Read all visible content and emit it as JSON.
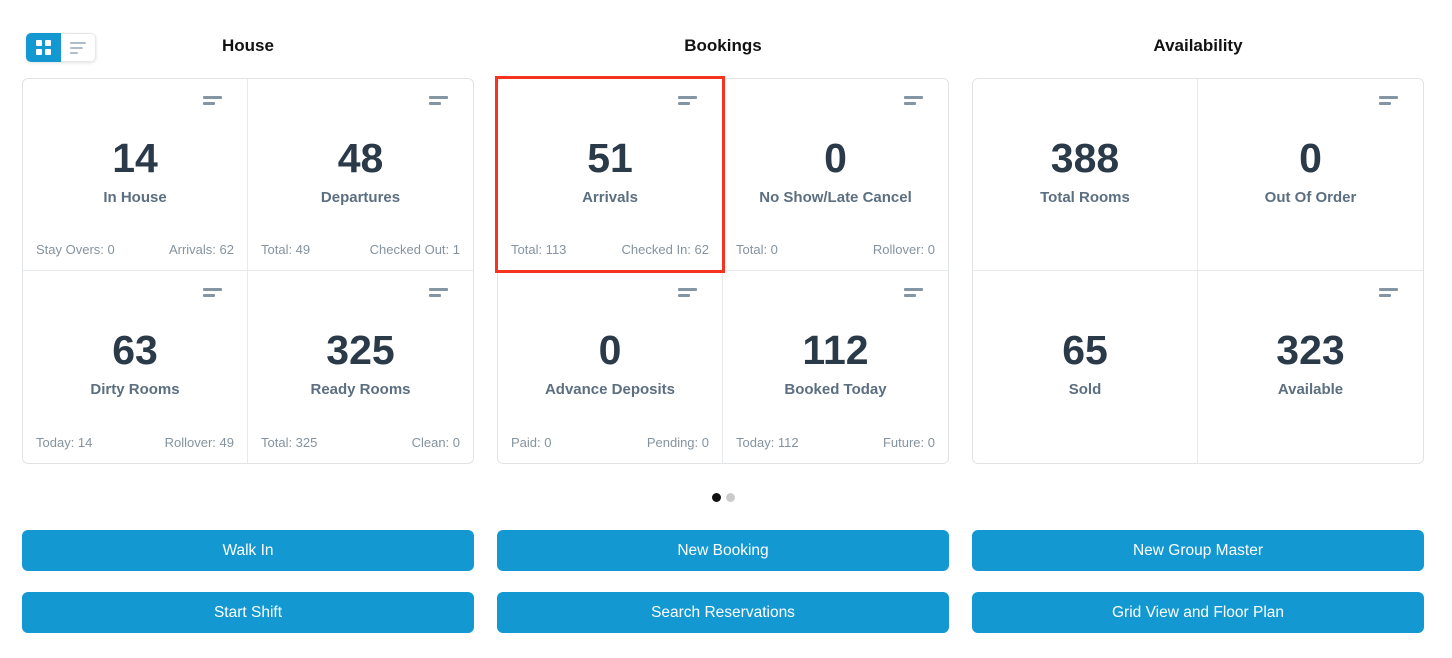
{
  "colors": {
    "accent": "#1398d2",
    "highlight_border": "#f5331f",
    "number_text": "#2b3a49",
    "label_text": "#5c6f80",
    "footer_text": "#84939f"
  },
  "icons": {
    "toggle_grid": "grid-view-icon",
    "toggle_list": "list-view-icon",
    "card_menu": "sort-lines-icon"
  },
  "pagination": {
    "dot_count": 2,
    "active_index": 0
  },
  "sections": [
    {
      "title": "House",
      "cards": [
        {
          "value": "14",
          "label": "In House",
          "footer_left": "Stay Overs: 0",
          "footer_right": "Arrivals: 62"
        },
        {
          "value": "48",
          "label": "Departures",
          "footer_left": "Total: 49",
          "footer_right": "Checked Out: 1"
        },
        {
          "value": "63",
          "label": "Dirty Rooms",
          "footer_left": "Today: 14",
          "footer_right": "Rollover: 49"
        },
        {
          "value": "325",
          "label": "Ready Rooms",
          "footer_left": "Total: 325",
          "footer_right": "Clean: 0"
        }
      ],
      "buttons": [
        "Walk In",
        "Start Shift"
      ]
    },
    {
      "title": "Bookings",
      "cards": [
        {
          "value": "51",
          "label": "Arrivals",
          "footer_left": "Total: 113",
          "footer_right": "Checked In: 62",
          "highlighted": true
        },
        {
          "value": "0",
          "label": "No Show/Late Cancel",
          "footer_left": "Total: 0",
          "footer_right": "Rollover: 0"
        },
        {
          "value": "0",
          "label": "Advance Deposits",
          "footer_left": "Paid: 0",
          "footer_right": "Pending: 0"
        },
        {
          "value": "112",
          "label": "Booked Today",
          "footer_left": "Today: 112",
          "footer_right": "Future: 0"
        }
      ],
      "buttons": [
        "New Booking",
        "Search Reservations"
      ]
    },
    {
      "title": "Availability",
      "cards": [
        {
          "value": "388",
          "label": "Total Rooms"
        },
        {
          "value": "0",
          "label": "Out Of Order"
        },
        {
          "value": "65",
          "label": "Sold"
        },
        {
          "value": "323",
          "label": "Available"
        }
      ],
      "buttons": [
        "New Group Master",
        "Grid View and Floor Plan"
      ]
    }
  ]
}
